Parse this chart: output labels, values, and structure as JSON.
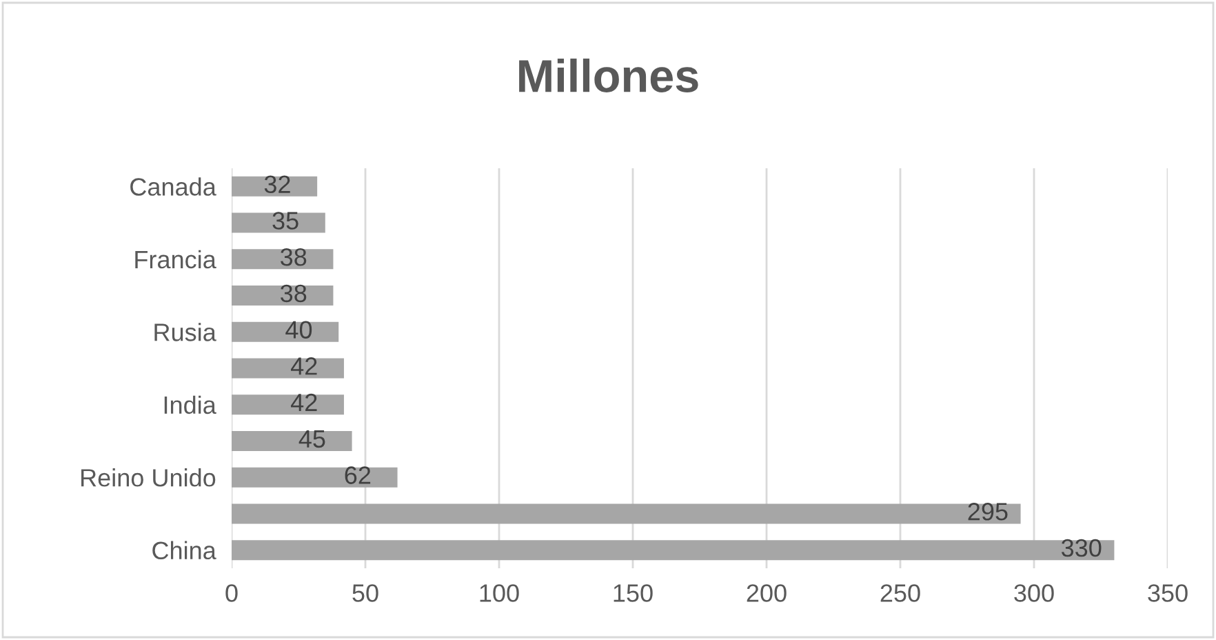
{
  "chart_data": {
    "type": "bar",
    "orientation": "horizontal",
    "title": "Millones",
    "categories": [
      "Canada",
      null,
      "Francia",
      null,
      "Rusia",
      null,
      "India",
      null,
      "Reino Unido",
      null,
      "China"
    ],
    "values": [
      32,
      35,
      38,
      38,
      40,
      42,
      42,
      45,
      62,
      295,
      330
    ],
    "color": "#a6a6a6",
    "xlim": [
      0,
      350
    ],
    "xticks": [
      0,
      50,
      100,
      150,
      200,
      250,
      300,
      350
    ],
    "grid": "x",
    "data_labels": true
  }
}
